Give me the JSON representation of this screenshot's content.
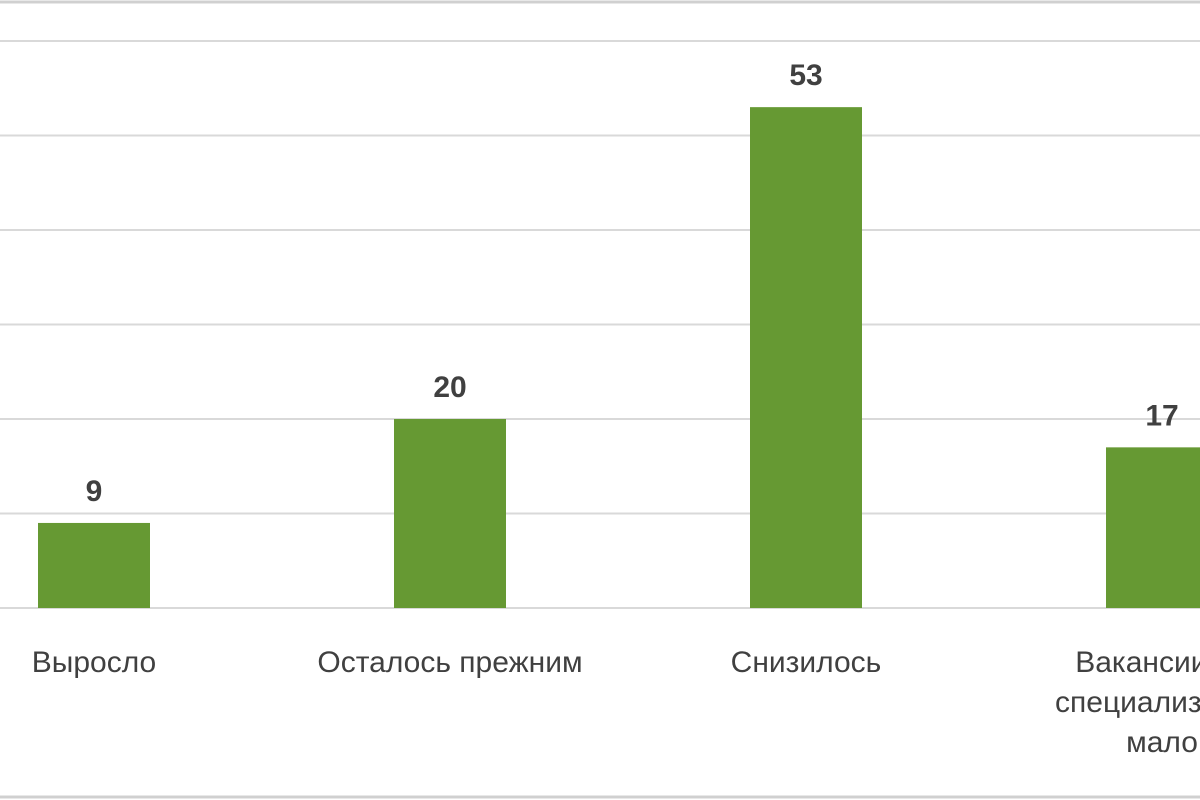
{
  "chart_data": {
    "type": "bar",
    "categories": [
      [
        "Выросло"
      ],
      [
        "Осталось прежним"
      ],
      [
        "Снизилось"
      ],
      [
        "Вакансии по",
        "специализации",
        "мало"
      ]
    ],
    "values": [
      9,
      20,
      53,
      17
    ],
    "ylim": [
      0,
      60
    ],
    "grid": true,
    "title": "",
    "xlabel": "",
    "ylabel": "",
    "colors": {
      "bar": "#669933",
      "grid": "#d9d9d9",
      "text": "#404040"
    }
  }
}
